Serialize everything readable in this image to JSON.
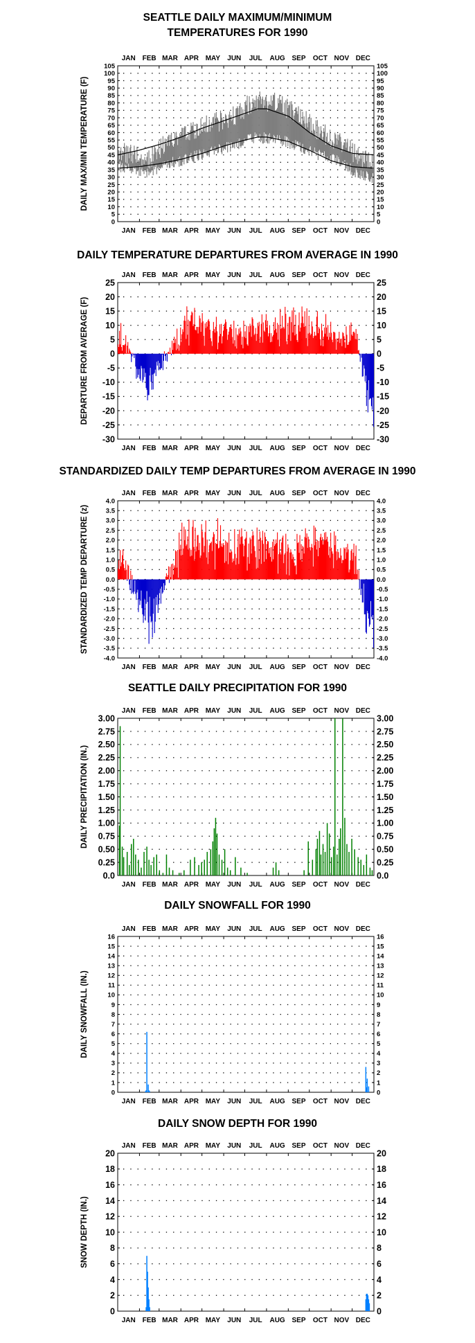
{
  "months": [
    "JAN",
    "FEB",
    "MAR",
    "APR",
    "MAY",
    "JUN",
    "JUL",
    "AUG",
    "SEP",
    "OCT",
    "NOV",
    "DEC"
  ],
  "chart_data": [
    {
      "id": "temps",
      "type": "line",
      "title_lines": [
        "SEATTLE DAILY MAXIMUM/MINIMUM",
        "TEMPERATURES FOR 1990"
      ],
      "ylabel": "DAILY MAX/MIN TEMPERATURE (F)",
      "ylim": [
        0,
        105
      ],
      "yticks": [
        0,
        5,
        10,
        15,
        20,
        25,
        30,
        35,
        40,
        45,
        50,
        55,
        60,
        65,
        70,
        75,
        80,
        85,
        90,
        95,
        100,
        105
      ],
      "grid": true,
      "series": [],
      "observed_max_by_month_approx": {
        "x": [
          15,
          46,
          74,
          105,
          135,
          166,
          196,
          227,
          258,
          288,
          319,
          349
        ],
        "y": [
          46,
          42,
          55,
          62,
          66,
          71,
          82,
          80,
          72,
          61,
          53,
          42
        ]
      },
      "observed_min_by_month_approx": {
        "x": [
          15,
          46,
          74,
          105,
          135,
          166,
          196,
          227,
          258,
          288,
          319,
          349
        ],
        "y": [
          37,
          33,
          39,
          43,
          47,
          51,
          57,
          56,
          51,
          45,
          40,
          30
        ]
      },
      "normal_max_approx": {
        "x": [
          1,
          30,
          60,
          91,
          121,
          152,
          182,
          200,
          213,
          244,
          274,
          305,
          335,
          365
        ],
        "y": [
          45,
          48,
          52,
          57,
          63,
          68,
          73,
          76,
          76,
          71,
          60,
          51,
          46,
          45
        ]
      },
      "normal_min_approx": {
        "x": [
          1,
          30,
          60,
          91,
          121,
          152,
          182,
          200,
          213,
          244,
          274,
          305,
          335,
          365
        ],
        "y": [
          36,
          37,
          39,
          42,
          46,
          51,
          55,
          57,
          57,
          54,
          48,
          41,
          37,
          36
        ]
      }
    },
    {
      "id": "departures",
      "type": "bar",
      "title": "DAILY TEMPERATURE DEPARTURES FROM AVERAGE IN 1990",
      "ylabel": "DEPARTURE FROM AVERAGE (F)",
      "ylim": [
        -30,
        25
      ],
      "yticks": [
        -30,
        -25,
        -20,
        -15,
        -10,
        -5,
        0,
        5,
        10,
        15,
        20,
        25
      ],
      "grid": true,
      "positive_color": "#ff0000",
      "negative_color": "#0000cc",
      "peaks_approx": {
        "x": [
          5,
          40,
          44,
          98,
          170,
          192,
          215,
          250,
          305,
          318,
          340,
          358
        ],
        "y": [
          8,
          -14,
          -16,
          14,
          10,
          11,
          12,
          15,
          10,
          9,
          8,
          -25
        ]
      }
    },
    {
      "id": "standardized",
      "type": "bar",
      "title": "STANDARDIZED DAILY TEMP DEPARTURES FROM AVERAGE IN 1990",
      "ylabel": "STANDARDIZED TEMP DEPARTURE (z)",
      "ylim": [
        -4.0,
        4.0
      ],
      "yticks": [
        -4.0,
        -3.5,
        -3.0,
        -2.5,
        -2.0,
        -1.5,
        -1.0,
        -0.5,
        0.0,
        0.5,
        1.0,
        1.5,
        2.0,
        2.5,
        3.0,
        3.5,
        4.0
      ],
      "ytick_labels": [
        "-4.0",
        "-3.5",
        "-3.0",
        "-2.5",
        "-2.0",
        "-1.5",
        "-1.0",
        "-0.5",
        "0.0",
        "0.5",
        "1.0",
        "1.5",
        "2.0",
        "2.5",
        "3.0",
        "3.5",
        "4.0"
      ],
      "grid": true,
      "positive_color": "#ff0000",
      "negative_color": "#0000cc",
      "peaks_approx": {
        "x": [
          5,
          40,
          44,
          98,
          170,
          192,
          215,
          250,
          305,
          318,
          340,
          358
        ],
        "y": [
          1.6,
          -2.6,
          -3.0,
          3.0,
          2.1,
          2.3,
          2.2,
          2.0,
          2.2,
          1.7,
          1.4,
          -3.6
        ]
      }
    },
    {
      "id": "precip",
      "type": "bar",
      "title": "SEATTLE DAILY PRECIPITATION FOR 1990",
      "ylabel": "DAILY PRECIPITATION (IN.)",
      "ylim": [
        0,
        3.0
      ],
      "yticks": [
        0,
        0.25,
        0.5,
        0.75,
        1.0,
        1.25,
        1.5,
        1.75,
        2.0,
        2.25,
        2.5,
        2.75,
        3.0
      ],
      "ytick_labels": [
        "0.0",
        "0.25",
        "0.50",
        "0.75",
        "1.00",
        "1.25",
        "1.50",
        "1.75",
        "2.00",
        "2.25",
        "2.50",
        "2.75",
        "3.00"
      ],
      "grid": true,
      "color": "#008000",
      "x": [
        3,
        4,
        7,
        9,
        14,
        17,
        20,
        23,
        26,
        30,
        34,
        38,
        42,
        45,
        48,
        52,
        56,
        60,
        65,
        70,
        74,
        79,
        88,
        95,
        104,
        110,
        116,
        120,
        124,
        128,
        133,
        136,
        138,
        140,
        142,
        145,
        149,
        153,
        157,
        161,
        168,
        176,
        185,
        222,
        226,
        230,
        266,
        272,
        278,
        283,
        285,
        288,
        290,
        293,
        296,
        299,
        302,
        305,
        308,
        310,
        313,
        316,
        318,
        321,
        324,
        327,
        330,
        334,
        338,
        343,
        347,
        351,
        355,
        360,
        363
      ],
      "values": [
        0.95,
        2.85,
        0.55,
        0.35,
        0.45,
        0.2,
        0.6,
        0.7,
        0.4,
        0.3,
        0.15,
        0.45,
        0.55,
        0.3,
        0.2,
        0.35,
        0.4,
        0.1,
        0.05,
        0.4,
        0.15,
        0.1,
        0.05,
        0.1,
        0.3,
        0.35,
        0.2,
        0.25,
        0.3,
        0.45,
        0.5,
        0.65,
        0.9,
        1.1,
        0.8,
        0.4,
        0.3,
        0.5,
        0.15,
        0.1,
        0.35,
        0.15,
        0.05,
        0.15,
        0.25,
        0.1,
        0.1,
        0.65,
        0.3,
        0.5,
        0.7,
        0.85,
        0.4,
        0.6,
        0.45,
        1.0,
        0.8,
        0.35,
        0.55,
        3.0,
        0.4,
        0.7,
        0.9,
        3.0,
        1.1,
        0.6,
        0.45,
        0.7,
        0.5,
        0.35,
        0.3,
        0.2,
        0.4,
        0.15,
        0.1
      ]
    },
    {
      "id": "snowfall",
      "type": "bar",
      "title": "DAILY SNOWFALL FOR 1990",
      "ylabel": "DAILY SNOWFALL (IN.)",
      "ylim": [
        0,
        16
      ],
      "yticks": [
        0,
        1,
        2,
        3,
        4,
        5,
        6,
        7,
        8,
        9,
        10,
        11,
        12,
        13,
        14,
        15,
        16
      ],
      "grid": true,
      "color": "#0080ff",
      "x": [
        40,
        41,
        42,
        44,
        45,
        46,
        354,
        355,
        356,
        358
      ],
      "values": [
        0.1,
        0.2,
        6.2,
        0.8,
        0.2,
        0.1,
        2.6,
        0.5,
        1.4,
        0.6
      ]
    },
    {
      "id": "snowdepth",
      "type": "bar",
      "title": "DAILY SNOW DEPTH FOR 1990",
      "ylabel": "SNOW DEPTH (IN.)",
      "ylim": [
        0,
        20
      ],
      "yticks": [
        0,
        2,
        4,
        6,
        8,
        10,
        12,
        14,
        16,
        18,
        20
      ],
      "grid": true,
      "color": "#0080ff",
      "x": [
        41,
        42,
        43,
        44,
        45,
        46,
        354,
        355,
        356,
        357,
        358,
        359
      ],
      "values": [
        0.5,
        7.0,
        5.0,
        3.0,
        1.5,
        0.5,
        1.5,
        2.2,
        2.2,
        2.0,
        1.5,
        1.0
      ]
    }
  ]
}
